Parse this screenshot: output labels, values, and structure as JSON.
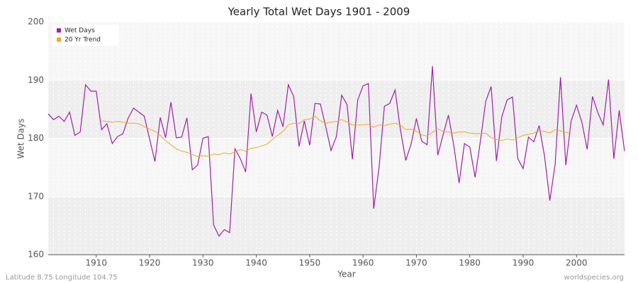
{
  "chart_data": {
    "type": "line",
    "title": "Yearly Total Wet Days 1901 - 2009",
    "x_label": "Year",
    "y_label": "Wet Days",
    "footer_left": "Latitude 8.75 Longitude 104.75",
    "footer_right": "worldspecies.org",
    "x": [
      1901,
      1902,
      1903,
      1904,
      1905,
      1906,
      1907,
      1908,
      1909,
      1910,
      1911,
      1912,
      1913,
      1914,
      1915,
      1916,
      1917,
      1918,
      1919,
      1920,
      1921,
      1922,
      1923,
      1924,
      1925,
      1926,
      1927,
      1928,
      1929,
      1930,
      1931,
      1932,
      1933,
      1934,
      1935,
      1936,
      1937,
      1938,
      1939,
      1940,
      1941,
      1942,
      1943,
      1944,
      1945,
      1946,
      1947,
      1948,
      1949,
      1950,
      1951,
      1952,
      1953,
      1954,
      1955,
      1956,
      1957,
      1958,
      1959,
      1960,
      1961,
      1962,
      1963,
      1964,
      1965,
      1966,
      1967,
      1968,
      1969,
      1970,
      1971,
      1972,
      1973,
      1974,
      1975,
      1976,
      1977,
      1978,
      1979,
      1980,
      1981,
      1982,
      1983,
      1984,
      1985,
      1986,
      1987,
      1988,
      1989,
      1990,
      1991,
      1992,
      1993,
      1994,
      1995,
      1996,
      1997,
      1998,
      1999,
      2000,
      2001,
      2002,
      2003,
      2004,
      2005,
      2006,
      2007,
      2008,
      2009
    ],
    "series": [
      {
        "name": "Wet Days",
        "color": "#a020a8",
        "values": [
          184.2,
          183.2,
          183.8,
          182.9,
          184.5,
          180.5,
          181.1,
          189.2,
          188.1,
          188.1,
          181.5,
          182.5,
          179.1,
          180.3,
          180.8,
          183.5,
          185.2,
          184.5,
          183.8,
          179.9,
          176.0,
          183.6,
          180.1,
          186.2,
          180.1,
          180.2,
          183.5,
          174.6,
          175.4,
          180.0,
          180.3,
          165.1,
          163.2,
          164.3,
          163.8,
          178.2,
          176.5,
          174.2,
          187.7,
          181.1,
          184.5,
          184.0,
          180.3,
          184.8,
          182.0,
          189.2,
          187.2,
          178.6,
          183.0,
          178.8,
          186.0,
          185.9,
          182.0,
          177.9,
          180.3,
          187.4,
          185.8,
          176.4,
          186.6,
          189.0,
          189.4,
          167.9,
          175.0,
          185.5,
          186.0,
          188.3,
          181.5,
          176.2,
          179.0,
          183.4,
          179.5,
          178.9,
          192.4,
          177.1,
          180.6,
          184.0,
          178.8,
          172.3,
          179.1,
          178.5,
          173.3,
          179.6,
          186.4,
          188.9,
          176.1,
          183.7,
          186.6,
          187.1,
          176.5,
          174.8,
          180.2,
          179.4,
          182.2,
          177.0,
          169.3,
          175.6,
          190.5,
          175.4,
          183.0,
          185.7,
          182.8,
          178.1,
          187.2,
          184.4,
          182.3,
          190.1,
          176.5,
          184.8,
          177.8
        ]
      },
      {
        "name": "20 Yr Trend",
        "color": "#f5a623",
        "values": [
          null,
          null,
          null,
          null,
          null,
          null,
          null,
          null,
          null,
          null,
          183.0,
          182.9,
          182.8,
          182.9,
          182.8,
          182.6,
          182.6,
          182.5,
          182.0,
          181.6,
          181.2,
          180.5,
          179.6,
          178.9,
          178.2,
          177.8,
          177.6,
          177.2,
          176.9,
          177.0,
          176.9,
          177.3,
          177.2,
          177.5,
          177.3,
          177.7,
          178.1,
          177.8,
          178.3,
          178.4,
          178.7,
          179.0,
          179.8,
          180.5,
          181.2,
          182.3,
          182.6,
          182.5,
          183.2,
          183.3,
          183.8,
          183.0,
          182.6,
          182.8,
          182.9,
          183.2,
          182.8,
          182.3,
          182.3,
          182.3,
          182.4,
          181.9,
          182.3,
          182.2,
          182.4,
          182.6,
          182.3,
          181.5,
          181.6,
          181.2,
          180.6,
          180.4,
          181.0,
          181.6,
          181.2,
          181.1,
          180.9,
          181.1,
          181.1,
          180.9,
          180.8,
          180.8,
          180.9,
          180.1,
          179.8,
          179.6,
          179.9,
          179.7,
          180.1,
          180.5,
          180.7,
          180.9,
          181.3,
          181.2,
          180.9,
          181.5,
          181.3,
          181.0,
          180.8,
          null,
          null,
          null,
          null,
          null,
          null,
          null,
          null,
          null,
          null
        ]
      }
    ],
    "xlim": [
      1901,
      2009
    ],
    "xticks": [
      1910,
      1920,
      1930,
      1940,
      1950,
      1960,
      1970,
      1980,
      1990,
      2000
    ],
    "ylim": [
      160,
      200
    ],
    "yticks": [
      160,
      170,
      180,
      190,
      200
    ],
    "grid": true,
    "legend": "top-left"
  }
}
